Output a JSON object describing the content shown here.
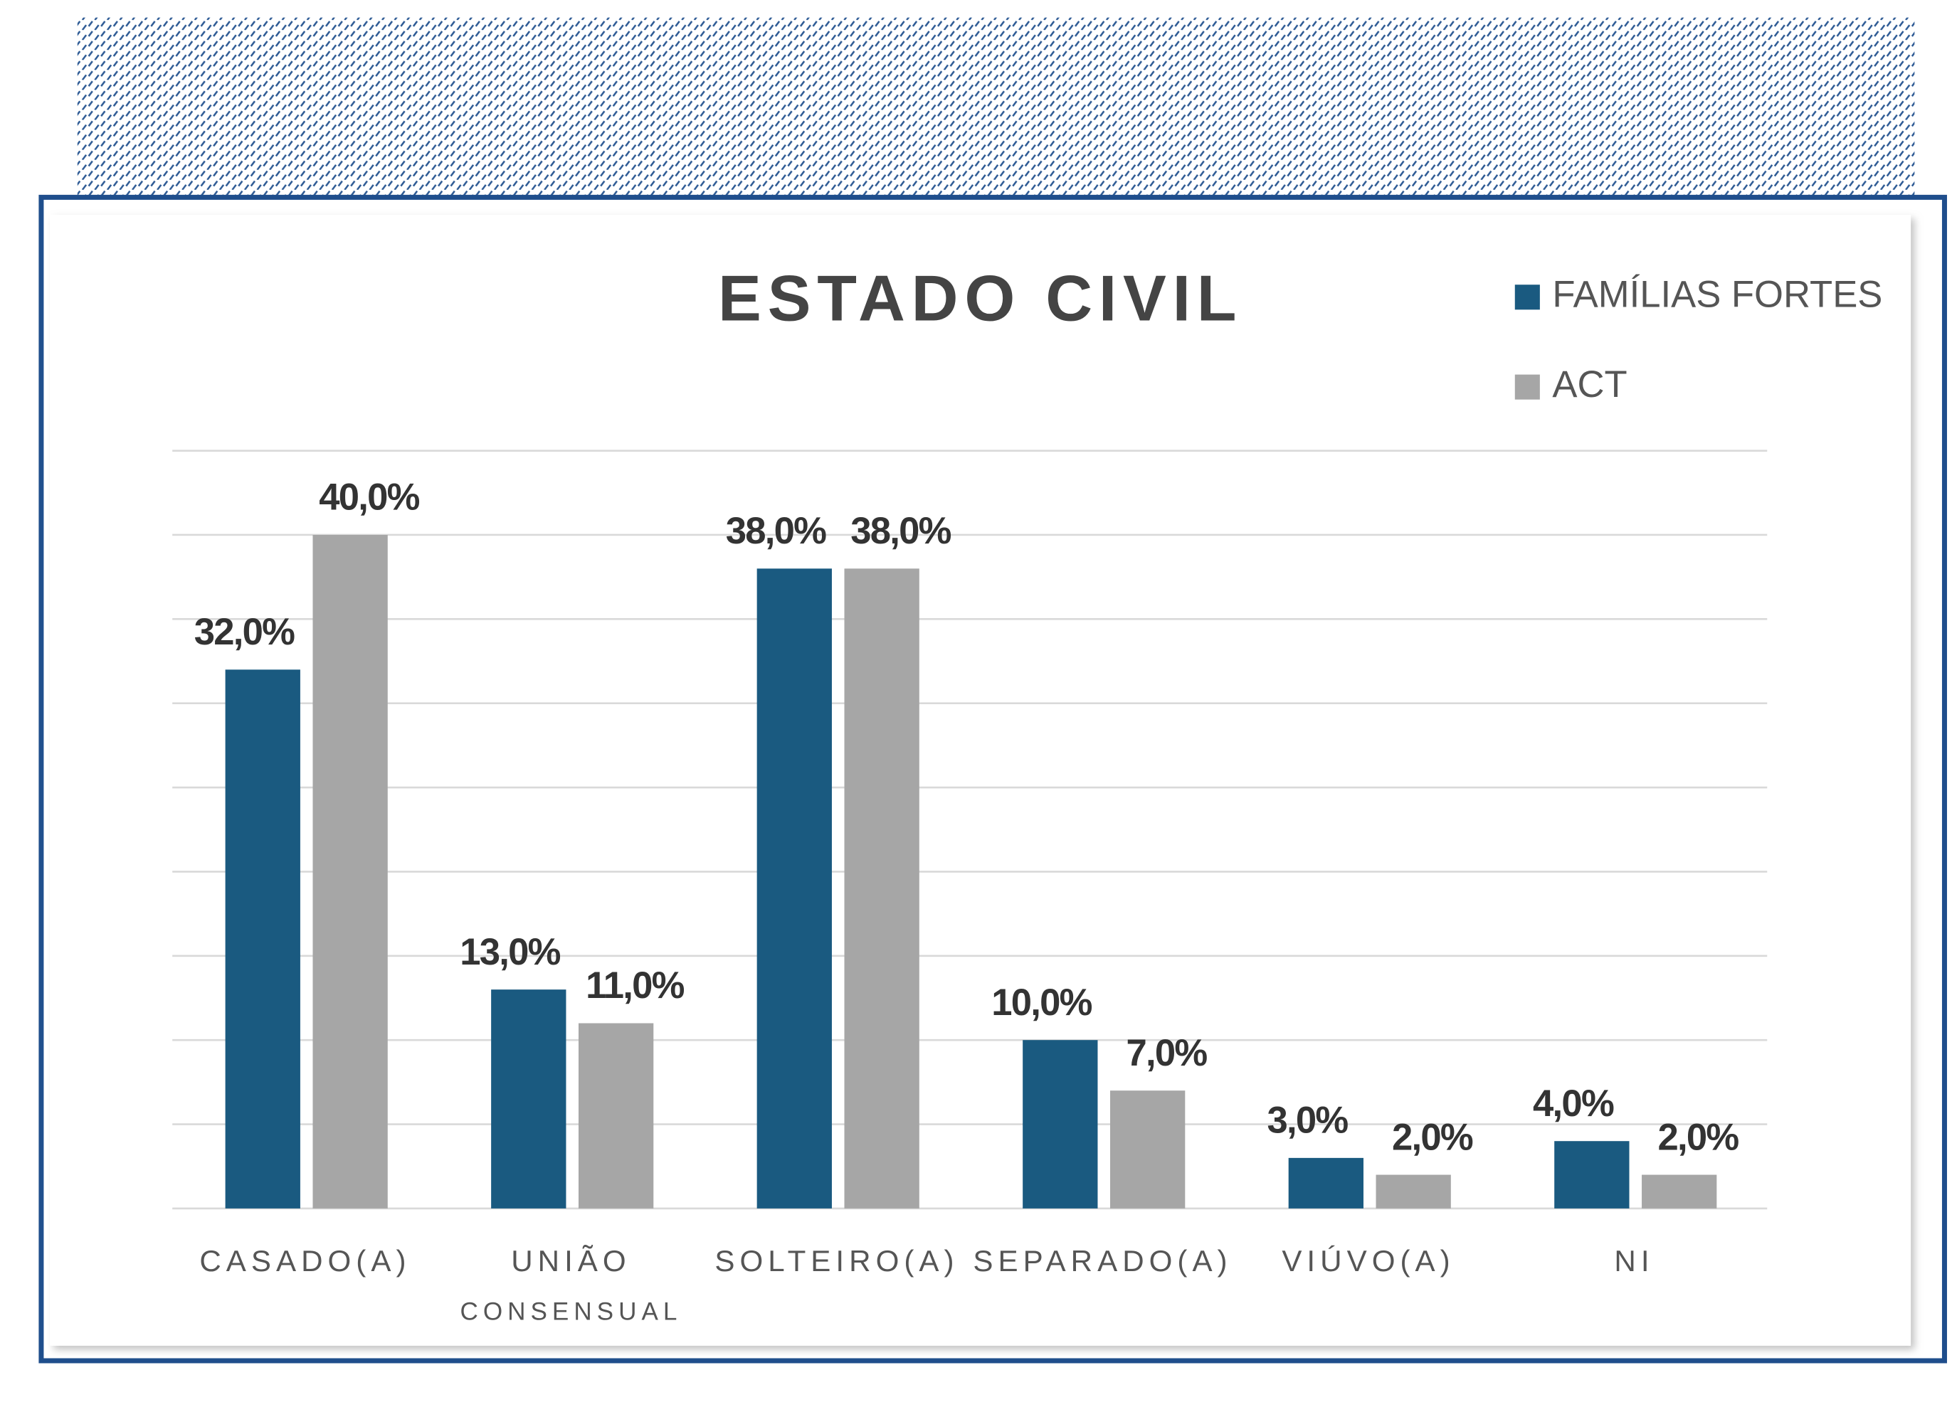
{
  "chart_data": {
    "type": "bar",
    "title": "ESTADO CIVIL",
    "categories": [
      "CASADO(A)",
      "UNIÃO CONSENSUAL",
      "SOLTEIRO(A)",
      "SEPARADO(A)",
      "VIÚVO(A)",
      "NI"
    ],
    "series": [
      {
        "name": "FAMÍLIAS FORTES",
        "color": "#1a5a80",
        "values": [
          32,
          13,
          38,
          10,
          3,
          4
        ],
        "value_labels": [
          "32,0%",
          "13,0%",
          "38,0%",
          "10,0%",
          "3,0%",
          "4,0%"
        ]
      },
      {
        "name": "ACT",
        "color": "#a6a6a6",
        "values": [
          40,
          11,
          38,
          7,
          2,
          2
        ],
        "value_labels": [
          "40,0%",
          "11,0%",
          "38,0%",
          "7,0%",
          "2,0%",
          "2,0%"
        ]
      }
    ],
    "ylim": [
      0,
      45
    ],
    "yticks": [
      0,
      5,
      10,
      15,
      20,
      25,
      30,
      35,
      40,
      45
    ],
    "grid": true,
    "legend": "top-right"
  }
}
